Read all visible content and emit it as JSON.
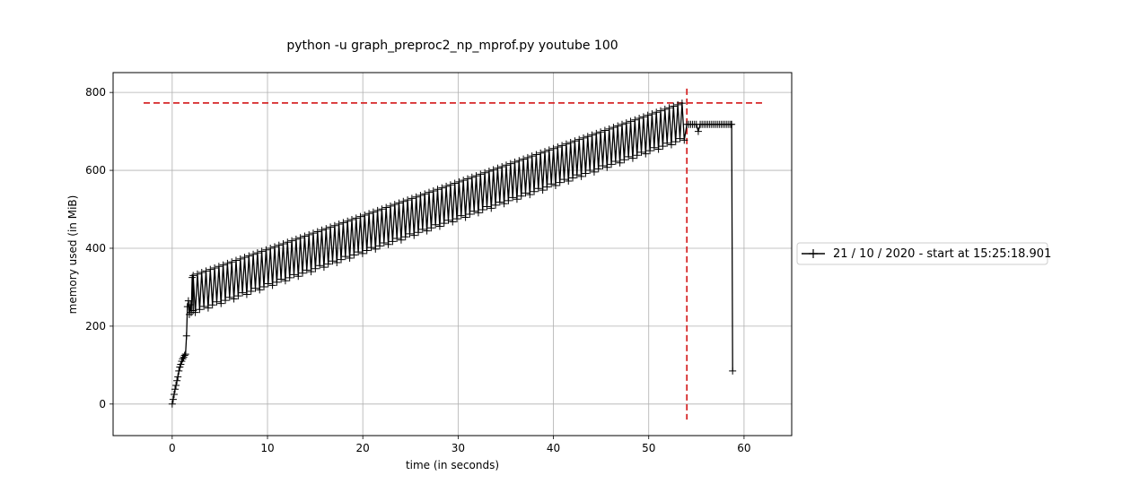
{
  "chart_data": {
    "type": "line",
    "title": "python -u graph_preproc2_np_mprof.py youtube 100",
    "xlabel": "time (in seconds)",
    "ylabel": "memory used (in MiB)",
    "xlim": [
      -6.2,
      65.0
    ],
    "ylim": [
      -81,
      851
    ],
    "xticks": [
      0,
      10,
      20,
      30,
      40,
      50,
      60
    ],
    "yticks": [
      0,
      200,
      400,
      600,
      800
    ],
    "grid": true,
    "legend_position": "right",
    "series": [
      {
        "name": "21 / 10 / 2020 - start at 15:25:18.901",
        "color": "#000000",
        "marker": "+",
        "ramp_x": [
          0.0,
          0.1,
          0.2,
          0.3,
          0.4,
          0.5,
          0.6,
          0.7,
          0.8,
          0.9,
          1.0,
          1.1,
          1.2,
          1.3,
          1.4,
          1.5
        ],
        "ramp_y": [
          0,
          12,
          25,
          38,
          48,
          60,
          70,
          85,
          95,
          102,
          110,
          116,
          120,
          125,
          128,
          175
        ],
        "jump_x": [
          1.6,
          1.7,
          1.8,
          1.9,
          2.0,
          2.1,
          2.2
        ],
        "jump_y": [
          250,
          265,
          230,
          255,
          235,
          325,
          240
        ],
        "oscillation_start": 2.2,
        "oscillation_end": 53.8,
        "oscillation_step": 0.45,
        "peak_start": 330,
        "peak_end": 775,
        "trough_start": 235,
        "trough_end": 680,
        "plateau_start": 54.0,
        "plateau_end": 58.6,
        "plateau_step": 0.2,
        "plateau_value": 718,
        "plateau_dip": {
          "x": 55.2,
          "y": 700
        },
        "final_x": [
          58.7,
          58.8
        ],
        "final_y": [
          718,
          85
        ]
      }
    ],
    "reference_lines": [
      {
        "orientation": "horizontal",
        "value": 773,
        "from": -3,
        "to": 62,
        "color": "#d62728",
        "style": "dashed"
      },
      {
        "orientation": "vertical",
        "value": 54.0,
        "from": -40,
        "to": 810,
        "color": "#d62728",
        "style": "dashed"
      }
    ]
  }
}
